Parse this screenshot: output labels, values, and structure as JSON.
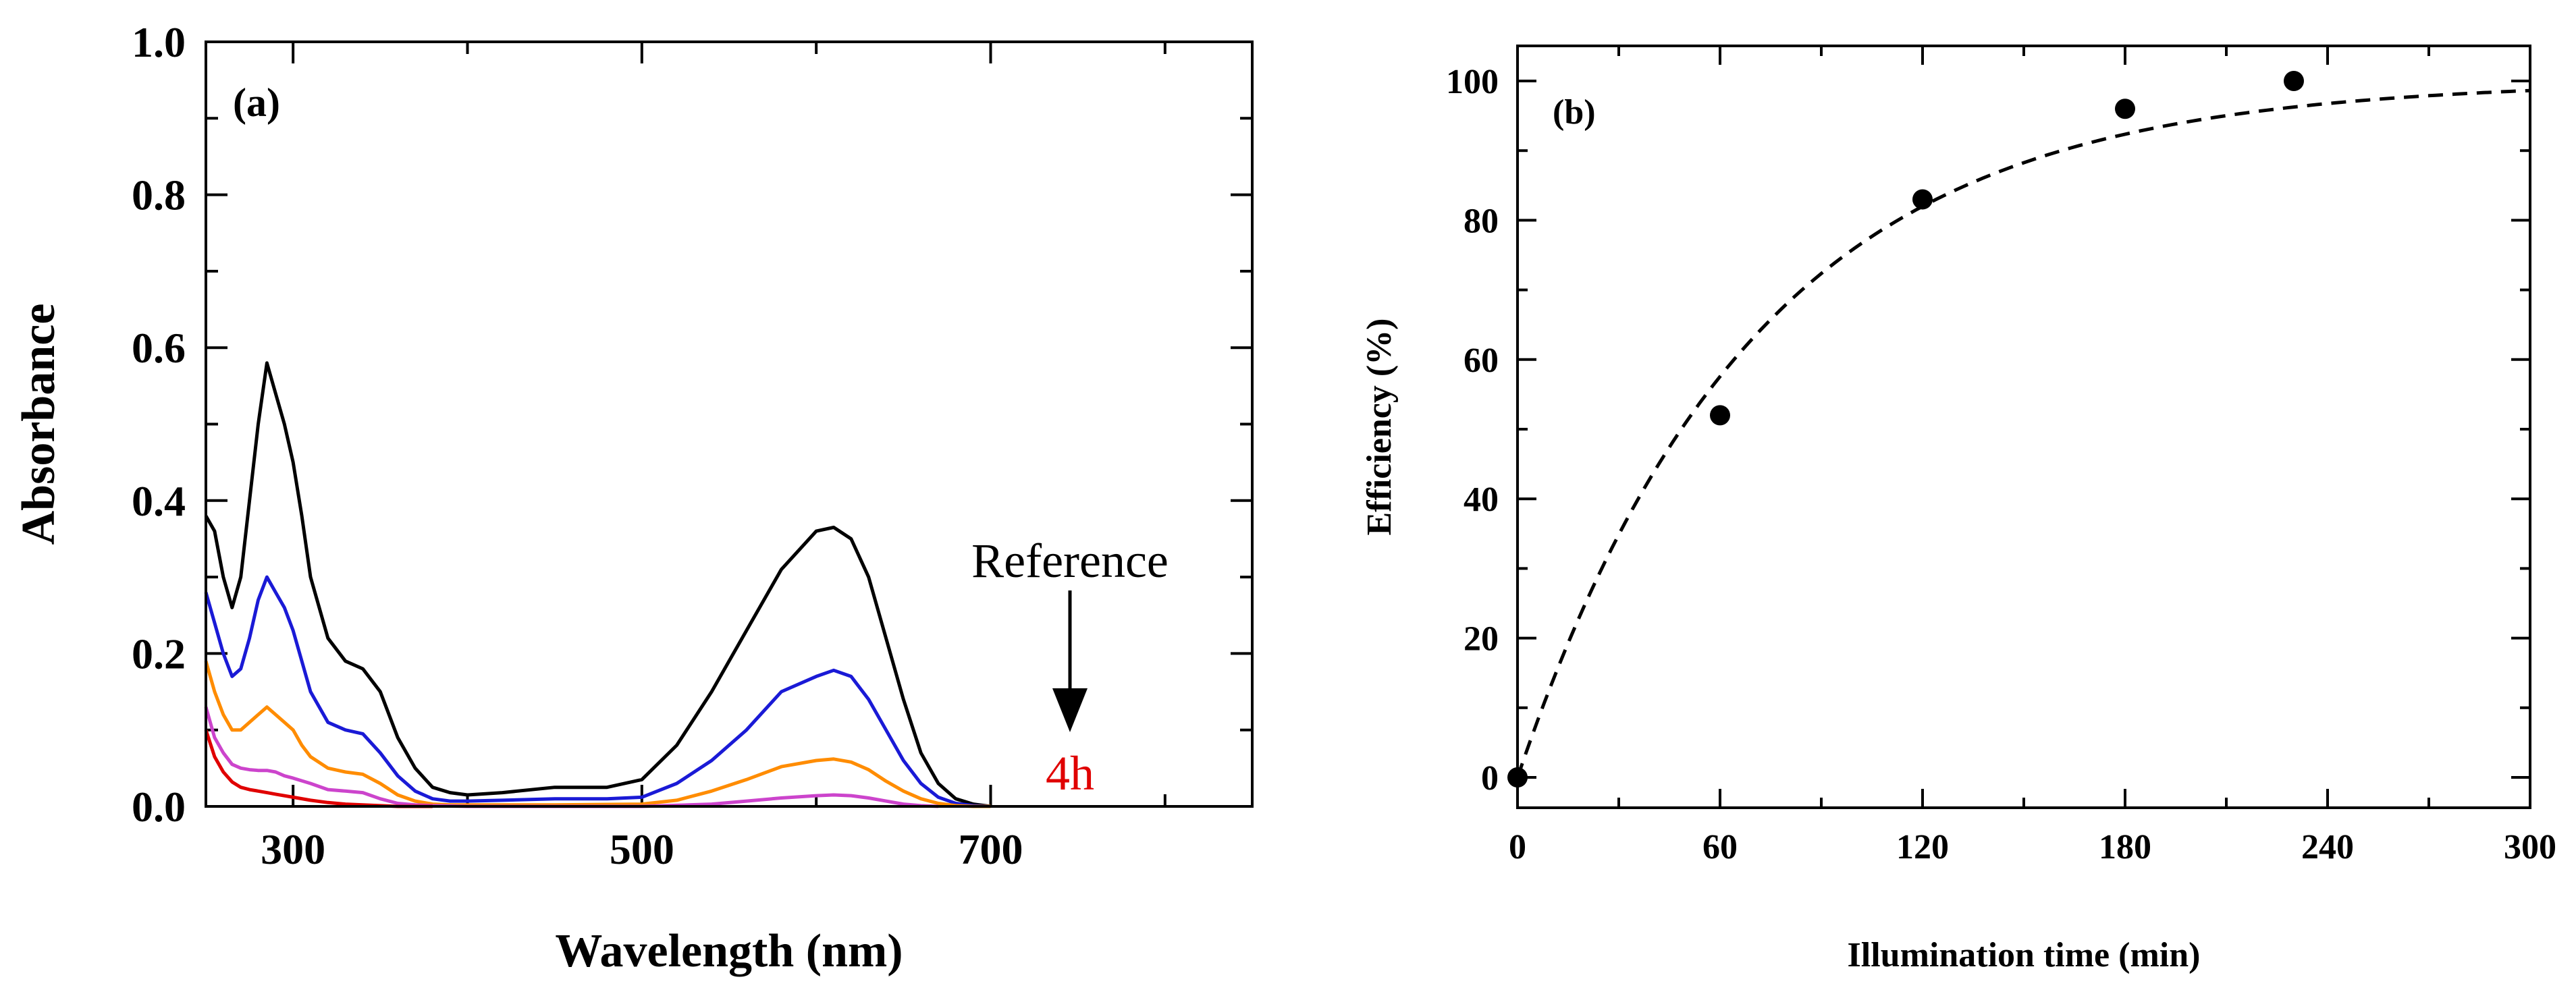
{
  "chart_data": [
    {
      "panel": "(a)",
      "type": "line",
      "xlabel": "Wavelength (nm)",
      "ylabel": "Absorbance",
      "xlim": [
        250,
        850
      ],
      "ylim": [
        0,
        1.0
      ],
      "xticks": [
        300,
        500,
        700
      ],
      "yticks": [
        0.0,
        0.2,
        0.4,
        0.6,
        0.8,
        1.0
      ],
      "ytick_labels": [
        "0.0",
        "0.2",
        "0.4",
        "0.6",
        "0.8",
        "1.0"
      ],
      "grid": false,
      "annotation": {
        "top": "Reference",
        "bottom": "4h",
        "arrow": "down",
        "top_color": "#000000",
        "bottom_color": "#e00000"
      },
      "series": [
        {
          "color": "#000000",
          "x": [
            250,
            255,
            260,
            265,
            270,
            275,
            280,
            285,
            290,
            295,
            300,
            305,
            310,
            320,
            330,
            340,
            350,
            360,
            370,
            380,
            390,
            400,
            420,
            450,
            480,
            500,
            520,
            540,
            560,
            580,
            600,
            610,
            620,
            630,
            640,
            650,
            660,
            670,
            680,
            690,
            700
          ],
          "y": [
            0.38,
            0.36,
            0.3,
            0.26,
            0.3,
            0.4,
            0.5,
            0.58,
            0.54,
            0.5,
            0.45,
            0.38,
            0.3,
            0.22,
            0.19,
            0.18,
            0.15,
            0.09,
            0.05,
            0.025,
            0.018,
            0.015,
            0.018,
            0.025,
            0.025,
            0.035,
            0.08,
            0.15,
            0.23,
            0.31,
            0.36,
            0.365,
            0.35,
            0.3,
            0.22,
            0.14,
            0.07,
            0.03,
            0.01,
            0.003,
            0.0
          ]
        },
        {
          "color": "#1a1ad6",
          "x": [
            250,
            255,
            260,
            265,
            270,
            275,
            280,
            285,
            290,
            295,
            300,
            305,
            310,
            320,
            330,
            340,
            350,
            360,
            370,
            380,
            390,
            400,
            420,
            450,
            480,
            500,
            520,
            540,
            560,
            580,
            600,
            610,
            620,
            630,
            640,
            650,
            660,
            670,
            680,
            690,
            700
          ],
          "y": [
            0.28,
            0.24,
            0.2,
            0.17,
            0.18,
            0.22,
            0.27,
            0.3,
            0.28,
            0.26,
            0.23,
            0.19,
            0.15,
            0.11,
            0.1,
            0.095,
            0.07,
            0.04,
            0.02,
            0.01,
            0.007,
            0.007,
            0.008,
            0.01,
            0.01,
            0.012,
            0.03,
            0.06,
            0.1,
            0.15,
            0.17,
            0.178,
            0.17,
            0.14,
            0.1,
            0.06,
            0.03,
            0.012,
            0.004,
            0.001,
            0.0
          ]
        },
        {
          "color": "#ff8c00",
          "x": [
            250,
            255,
            260,
            265,
            270,
            275,
            280,
            285,
            290,
            295,
            300,
            305,
            310,
            320,
            330,
            340,
            350,
            360,
            370,
            380,
            390,
            400,
            450,
            500,
            520,
            540,
            560,
            580,
            600,
            610,
            620,
            630,
            640,
            650,
            660,
            670,
            680,
            690,
            700
          ],
          "y": [
            0.19,
            0.15,
            0.12,
            0.1,
            0.1,
            0.11,
            0.12,
            0.13,
            0.12,
            0.11,
            0.1,
            0.08,
            0.065,
            0.05,
            0.045,
            0.042,
            0.03,
            0.015,
            0.007,
            0.003,
            0.002,
            0.002,
            0.002,
            0.003,
            0.008,
            0.02,
            0.035,
            0.052,
            0.06,
            0.062,
            0.058,
            0.048,
            0.033,
            0.02,
            0.01,
            0.004,
            0.001,
            0.0,
            0.0
          ]
        },
        {
          "color": "#cc44cc",
          "x": [
            250,
            255,
            260,
            265,
            270,
            275,
            280,
            285,
            290,
            295,
            300,
            310,
            320,
            330,
            340,
            350,
            360,
            370,
            380,
            400,
            500,
            540,
            560,
            580,
            600,
            610,
            620,
            630,
            640,
            650,
            660,
            670
          ],
          "y": [
            0.13,
            0.09,
            0.07,
            0.055,
            0.05,
            0.048,
            0.047,
            0.047,
            0.045,
            0.04,
            0.037,
            0.03,
            0.022,
            0.02,
            0.018,
            0.01,
            0.004,
            0.002,
            0.001,
            0.0,
            0.0,
            0.003,
            0.007,
            0.011,
            0.014,
            0.015,
            0.014,
            0.011,
            0.007,
            0.003,
            0.001,
            0.0
          ]
        },
        {
          "color": "#e00000",
          "x": [
            250,
            255,
            260,
            265,
            270,
            275,
            280,
            285,
            290,
            300,
            310,
            320,
            330,
            340,
            350,
            360,
            370,
            380
          ],
          "y": [
            0.1,
            0.065,
            0.045,
            0.032,
            0.025,
            0.022,
            0.02,
            0.018,
            0.016,
            0.012,
            0.008,
            0.005,
            0.003,
            0.002,
            0.001,
            0.0,
            0.0,
            0.0
          ]
        }
      ]
    },
    {
      "panel": "(b)",
      "type": "scatter",
      "xlabel": "Illumination time (min)",
      "ylabel": "Efficiency (%)",
      "xlim": [
        0,
        300
      ],
      "ylim": [
        0,
        105
      ],
      "xticks": [
        0,
        60,
        120,
        180,
        240,
        300
      ],
      "yticks": [
        0,
        20,
        40,
        60,
        80,
        100
      ],
      "grid": false,
      "points": {
        "x": [
          0,
          60,
          120,
          180,
          230
        ],
        "y": [
          0,
          52,
          83,
          96,
          100
        ]
      },
      "fit": {
        "style": "dashed",
        "formula": "100*(1-exp(-x/70))",
        "x_range": [
          0,
          300
        ]
      }
    }
  ]
}
